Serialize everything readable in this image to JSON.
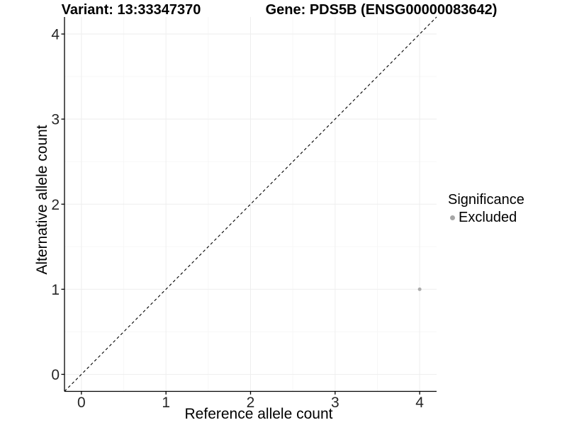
{
  "figure": {
    "title_left": "Variant: 13:33347370",
    "title_right": "Gene: PDS5B (ENSG00000083642)"
  },
  "legend": {
    "title": "Significance",
    "items": [
      {
        "label": "Excluded",
        "color": "#A6A6A6"
      }
    ]
  },
  "chart_data": {
    "type": "scatter",
    "title": "Variant: 13:33347370  |  Gene: PDS5B (ENSG00000083642)",
    "xlabel": "Reference allele count",
    "ylabel": "Alternative allele count",
    "xlim": [
      -0.2,
      4.2
    ],
    "ylim": [
      -0.2,
      4.2
    ],
    "xticks": [
      0,
      1,
      2,
      3,
      4
    ],
    "yticks": [
      0,
      1,
      2,
      3,
      4
    ],
    "x_minor": [
      0.5,
      1.5,
      2.5,
      3.5
    ],
    "y_minor": [
      0.5,
      1.5,
      2.5,
      3.5
    ],
    "grid": "major+minor",
    "legend_position": "right",
    "series": [
      {
        "name": "Excluded",
        "color": "#ABABAB",
        "points": [
          {
            "x": 4,
            "y": 1
          }
        ]
      }
    ],
    "reference_line": {
      "slope": 1,
      "intercept": 0,
      "style": "dashed",
      "color": "#000000"
    },
    "colors": {
      "axis_line": "#000000",
      "tick_label": "#262626",
      "grid_major": "#EEEEEE",
      "grid_minor": "#F7F7F7",
      "background": "#FFFFFF"
    }
  }
}
